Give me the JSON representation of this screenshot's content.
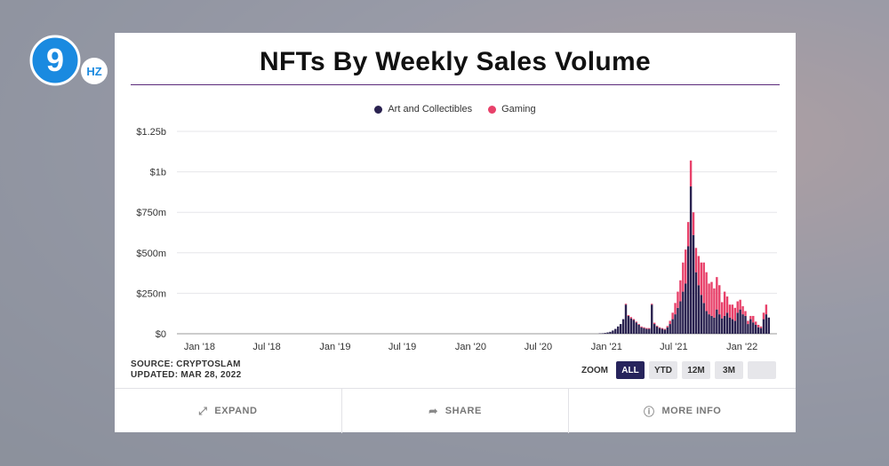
{
  "brand": {
    "logo_digit": "9",
    "logo_suffix": "HZ"
  },
  "title": "NFTs By Weekly Sales Volume",
  "colors": {
    "art": "#2a2250",
    "gaming": "#e8416a",
    "active_zoom": "#27245c"
  },
  "chart_data": {
    "type": "bar",
    "stacked": true,
    "series": [
      {
        "name": "Art and Collectibles",
        "color": "#2a2250"
      },
      {
        "name": "Gaming",
        "color": "#e8416a"
      }
    ],
    "y_ticks": [
      "$0",
      "$250m",
      "$500m",
      "$750m",
      "$1b",
      "$1.25b"
    ],
    "ylim": [
      0,
      1250
    ],
    "y_unit": "millions USD",
    "x_ticks": [
      "Jan '18",
      "Jul '18",
      "Jan '19",
      "Jul '19",
      "Jan '20",
      "Jul '20",
      "Jan '21",
      "Jul '21",
      "Jan '22"
    ],
    "grid": true,
    "legend_position": "top-center",
    "weeks_start": "2017-12-25",
    "weekly_art": [
      0,
      0,
      0,
      0,
      0,
      0,
      0,
      0,
      0,
      0,
      0,
      0,
      0,
      0,
      0,
      0,
      0,
      0,
      0,
      0,
      0,
      0,
      0,
      0,
      0,
      0,
      0,
      0,
      0,
      0,
      0,
      0,
      0,
      0,
      0,
      0,
      0,
      0,
      0,
      0,
      0,
      0,
      0,
      0,
      0,
      0,
      0,
      0,
      0,
      0,
      0,
      0,
      0,
      0,
      0,
      0,
      0,
      0,
      0,
      0,
      0,
      0,
      0,
      0,
      0,
      0,
      0,
      0,
      0,
      0,
      0,
      0,
      0,
      0,
      0,
      0,
      0,
      0,
      0,
      0,
      0,
      0,
      0,
      0,
      0,
      0,
      0,
      0,
      0,
      0,
      0,
      0,
      0,
      0,
      0,
      0,
      0,
      0,
      0,
      0,
      0,
      0,
      0,
      0,
      0,
      0,
      0,
      0,
      0,
      0,
      0,
      0,
      0,
      0,
      0,
      0,
      0,
      0,
      0,
      0,
      0,
      0,
      0,
      0,
      0,
      0,
      0,
      0,
      0,
      0,
      0,
      0,
      0,
      0,
      0,
      0,
      0,
      0,
      0,
      0,
      0,
      0,
      0,
      0,
      0,
      0,
      0,
      0,
      0,
      0,
      0,
      0,
      0,
      0,
      0,
      2,
      3,
      5,
      8,
      12,
      20,
      30,
      45,
      60,
      90,
      180,
      110,
      95,
      85,
      70,
      55,
      40,
      35,
      30,
      30,
      180,
      60,
      45,
      35,
      30,
      25,
      40,
      60,
      90,
      120,
      160,
      200,
      260,
      310,
      540,
      910,
      610,
      380,
      300,
      240,
      190,
      140,
      120,
      110,
      100,
      150,
      120,
      95,
      110,
      130,
      100,
      90,
      80,
      130,
      150,
      120,
      110,
      60,
      90,
      70,
      55,
      40,
      35,
      90,
      120,
      100
    ],
    "weekly_gaming": [
      0,
      0,
      0,
      0,
      0,
      0,
      0,
      0,
      0,
      0,
      0,
      0,
      0,
      0,
      0,
      0,
      0,
      0,
      0,
      0,
      0,
      0,
      0,
      0,
      0,
      0,
      0,
      0,
      0,
      0,
      0,
      0,
      0,
      0,
      0,
      0,
      0,
      0,
      0,
      0,
      0,
      0,
      0,
      0,
      0,
      0,
      0,
      0,
      0,
      0,
      0,
      0,
      0,
      0,
      0,
      0,
      0,
      0,
      0,
      0,
      0,
      0,
      0,
      0,
      0,
      0,
      0,
      0,
      0,
      0,
      0,
      0,
      0,
      0,
      0,
      0,
      0,
      0,
      0,
      0,
      0,
      0,
      0,
      0,
      0,
      0,
      0,
      0,
      0,
      0,
      0,
      0,
      0,
      0,
      0,
      0,
      0,
      0,
      0,
      0,
      0,
      0,
      0,
      0,
      0,
      0,
      0,
      0,
      0,
      0,
      0,
      0,
      0,
      0,
      0,
      0,
      0,
      0,
      0,
      0,
      0,
      0,
      0,
      0,
      0,
      0,
      0,
      0,
      0,
      0,
      0,
      0,
      0,
      0,
      0,
      0,
      0,
      0,
      0,
      0,
      0,
      0,
      0,
      0,
      0,
      0,
      0,
      0,
      0,
      0,
      0,
      0,
      0,
      0,
      0,
      0,
      0,
      0,
      0,
      0,
      0,
      0,
      0,
      0,
      0,
      5,
      5,
      8,
      6,
      5,
      5,
      5,
      5,
      5,
      5,
      5,
      8,
      5,
      5,
      5,
      5,
      8,
      20,
      40,
      70,
      100,
      130,
      180,
      210,
      150,
      160,
      140,
      150,
      180,
      200,
      250,
      240,
      190,
      210,
      180,
      200,
      180,
      100,
      150,
      100,
      80,
      90,
      80,
      70,
      60,
      50,
      30,
      20,
      20,
      40,
      20,
      15,
      10,
      40,
      60,
      0
    ]
  },
  "source": {
    "line1": "SOURCE: CRYPTOSLAM",
    "line2": "UPDATED: MAR 28, 2022"
  },
  "zoom": {
    "label": "ZOOM",
    "options": [
      "ALL",
      "YTD",
      "12M",
      "3M",
      ""
    ],
    "selected": "ALL"
  },
  "footer": {
    "expand": {
      "icon": "expand-icon",
      "label": "EXPAND"
    },
    "share": {
      "icon": "share-icon",
      "label": "SHARE"
    },
    "more": {
      "icon": "info-icon",
      "label": "MORE INFO"
    }
  }
}
